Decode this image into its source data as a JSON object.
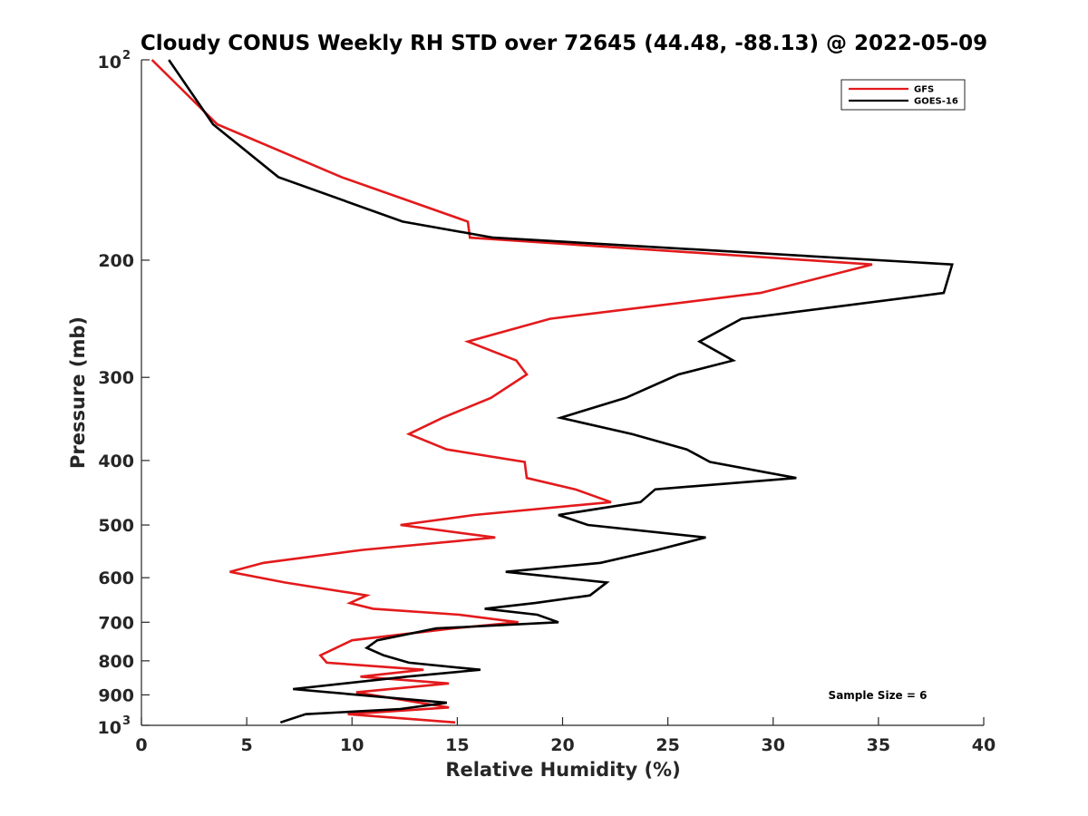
{
  "chart_data": {
    "type": "line",
    "title": "Cloudy CONUS Weekly RH STD over 72645 (44.48, -88.13) @ 2022-05-09",
    "xlabel": "Relative Humidity (%)",
    "ylabel": "Pressure (mb)",
    "xlim": [
      0,
      40
    ],
    "ylim": [
      100,
      1000
    ],
    "yscale": "log",
    "y_reversed": true,
    "x_ticks": [
      "0",
      "5",
      "10",
      "15",
      "20",
      "25",
      "30",
      "35",
      "40"
    ],
    "y_ticks": [
      {
        "value": 100,
        "base": "10",
        "exp": "2"
      },
      {
        "value": 200,
        "label": "200"
      },
      {
        "value": 300,
        "label": "300"
      },
      {
        "value": 400,
        "label": "400"
      },
      {
        "value": 500,
        "label": "500"
      },
      {
        "value": 600,
        "label": "600"
      },
      {
        "value": 700,
        "label": "700"
      },
      {
        "value": 800,
        "label": "800"
      },
      {
        "value": 900,
        "label": "900"
      },
      {
        "value": 1000,
        "base": "10",
        "exp": "3"
      }
    ],
    "grid": false,
    "legend_position": "top-right",
    "annotation": "Sample Size = 6",
    "series": [
      {
        "name": "GFS",
        "color": "#e31a1c",
        "points": [
          [
            0.5,
            100
          ],
          [
            3.6,
            125
          ],
          [
            9.5,
            150
          ],
          [
            15.5,
            175
          ],
          [
            15.6,
            185
          ],
          [
            34.7,
            203
          ],
          [
            29.4,
            224
          ],
          [
            19.4,
            245
          ],
          [
            15.5,
            265
          ],
          [
            17.8,
            283
          ],
          [
            18.3,
            297
          ],
          [
            16.6,
            322
          ],
          [
            14.3,
            345
          ],
          [
            12.7,
            365
          ],
          [
            14.5,
            385
          ],
          [
            18.2,
            402
          ],
          [
            18.3,
            425
          ],
          [
            20.6,
            442
          ],
          [
            22.3,
            462
          ],
          [
            15.8,
            483
          ],
          [
            12.3,
            500
          ],
          [
            16.8,
            522
          ],
          [
            10.5,
            545
          ],
          [
            5.8,
            570
          ],
          [
            4.2,
            588
          ],
          [
            6.8,
            610
          ],
          [
            10.7,
            638
          ],
          [
            9.9,
            655
          ],
          [
            11.0,
            668
          ],
          [
            15.1,
            682
          ],
          [
            17.9,
            700
          ],
          [
            14.8,
            715
          ],
          [
            10.0,
            745
          ],
          [
            8.5,
            785
          ],
          [
            8.8,
            805
          ],
          [
            13.4,
            825
          ],
          [
            10.4,
            845
          ],
          [
            14.6,
            865
          ],
          [
            10.2,
            892
          ],
          [
            14.6,
            940
          ],
          [
            9.8,
            962
          ],
          [
            14.9,
            990
          ]
        ]
      },
      {
        "name": "GOES-16",
        "color": "#000000",
        "points": [
          [
            1.3,
            100
          ],
          [
            3.4,
            125
          ],
          [
            6.5,
            150
          ],
          [
            12.4,
            175
          ],
          [
            16.7,
            185
          ],
          [
            38.5,
            203
          ],
          [
            38.1,
            224
          ],
          [
            28.5,
            245
          ],
          [
            26.5,
            265
          ],
          [
            28.1,
            283
          ],
          [
            25.5,
            297
          ],
          [
            23.0,
            322
          ],
          [
            19.9,
            345
          ],
          [
            23.3,
            365
          ],
          [
            25.9,
            385
          ],
          [
            27.0,
            402
          ],
          [
            31.1,
            425
          ],
          [
            24.4,
            442
          ],
          [
            23.7,
            462
          ],
          [
            19.8,
            483
          ],
          [
            21.2,
            500
          ],
          [
            26.8,
            522
          ],
          [
            24.5,
            545
          ],
          [
            21.8,
            570
          ],
          [
            17.3,
            588
          ],
          [
            22.1,
            610
          ],
          [
            21.3,
            638
          ],
          [
            18.7,
            655
          ],
          [
            16.3,
            668
          ],
          [
            18.8,
            682
          ],
          [
            19.8,
            700
          ],
          [
            14.0,
            715
          ],
          [
            11.2,
            745
          ],
          [
            10.7,
            765
          ],
          [
            11.5,
            785
          ],
          [
            12.7,
            805
          ],
          [
            16.1,
            825
          ],
          [
            12.6,
            845
          ],
          [
            7.2,
            882
          ],
          [
            14.5,
            925
          ],
          [
            12.3,
            945
          ],
          [
            7.8,
            962
          ],
          [
            6.6,
            990
          ]
        ]
      }
    ]
  }
}
